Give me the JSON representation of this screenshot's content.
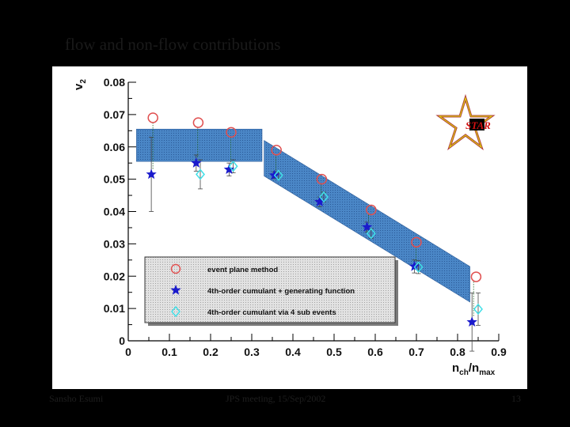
{
  "slide": {
    "title": "flow and non-flow contributions",
    "footer_left": "Sansho Esumi",
    "footer_center": "JPS meeting, 15/Sep/2002",
    "footer_right": "13",
    "logo_text": "STAR"
  },
  "chart_data": {
    "type": "scatter",
    "title": "",
    "xlabel_main": "n",
    "xlabel_sub1": "ch",
    "xlabel_mid": "/n",
    "xlabel_sub2": "max",
    "ylabel_main": "v",
    "ylabel_sub": "2",
    "xlim": [
      0,
      0.9
    ],
    "ylim": [
      0,
      0.08
    ],
    "x_ticks": [
      "0",
      "0.1",
      "0.2",
      "0.3",
      "0.4",
      "0.5",
      "0.6",
      "0.7",
      "0.8",
      "0.9"
    ],
    "y_ticks": [
      "0",
      "0.01",
      "0.02",
      "0.03",
      "0.04",
      "0.05",
      "0.06",
      "0.07",
      "0.08"
    ],
    "grid": false,
    "legend_position": "bottom-left",
    "bands": [
      {
        "shape": "flat",
        "x": [
          0.02,
          0.325
        ],
        "y_low": 0.0555,
        "y_high": 0.0655
      },
      {
        "shape": "diagonal",
        "x": [
          0.33,
          0.83
        ],
        "y_center_start": 0.0565,
        "y_center_end": 0.0175,
        "half_width": 0.0055
      }
    ],
    "series": [
      {
        "name": "event plane method",
        "marker": "circle",
        "color": "#e05050",
        "points": [
          [
            0.06,
            0.069
          ],
          [
            0.17,
            0.0675
          ],
          [
            0.25,
            0.0645
          ],
          [
            0.36,
            0.059
          ],
          [
            0.47,
            0.05
          ],
          [
            0.59,
            0.0405
          ],
          [
            0.7,
            0.0305
          ],
          [
            0.845,
            0.0198
          ]
        ]
      },
      {
        "name": "4th-order cumulant + generating function",
        "marker": "star",
        "color": "#1a1acc",
        "points": [
          [
            0.056,
            0.0515
          ],
          [
            0.165,
            0.055
          ],
          [
            0.245,
            0.053
          ],
          [
            0.355,
            0.0512
          ],
          [
            0.465,
            0.043
          ],
          [
            0.58,
            0.0352
          ],
          [
            0.695,
            0.023
          ],
          [
            0.835,
            0.0058
          ]
        ],
        "errors": [
          [
            0.0115,
            0.0115
          ],
          [
            0.0025,
            0.0025
          ],
          [
            0.002,
            0.002
          ],
          [
            0.001,
            0.001
          ],
          [
            0.0015,
            0.0015
          ],
          [
            0.0015,
            0.0015
          ],
          [
            0.002,
            0.002
          ],
          [
            0.009,
            0.009
          ]
        ]
      },
      {
        "name": "4th-order cumulant via 4 sub events",
        "marker": "diamond",
        "color": "#40e0e8",
        "points": [
          [
            0.175,
            0.0515
          ],
          [
            0.255,
            0.054
          ],
          [
            0.365,
            0.0512
          ],
          [
            0.475,
            0.0445
          ],
          [
            0.59,
            0.0332
          ],
          [
            0.705,
            0.0228
          ],
          [
            0.85,
            0.0098
          ]
        ],
        "errors": [
          [
            0.0045,
            0.0045
          ],
          [
            0.002,
            0.002
          ],
          [
            0.001,
            0.001
          ],
          [
            0.0015,
            0.0015
          ],
          [
            0.0015,
            0.0015
          ],
          [
            0.002,
            0.002
          ],
          [
            0.005,
            0.005
          ]
        ]
      }
    ]
  }
}
